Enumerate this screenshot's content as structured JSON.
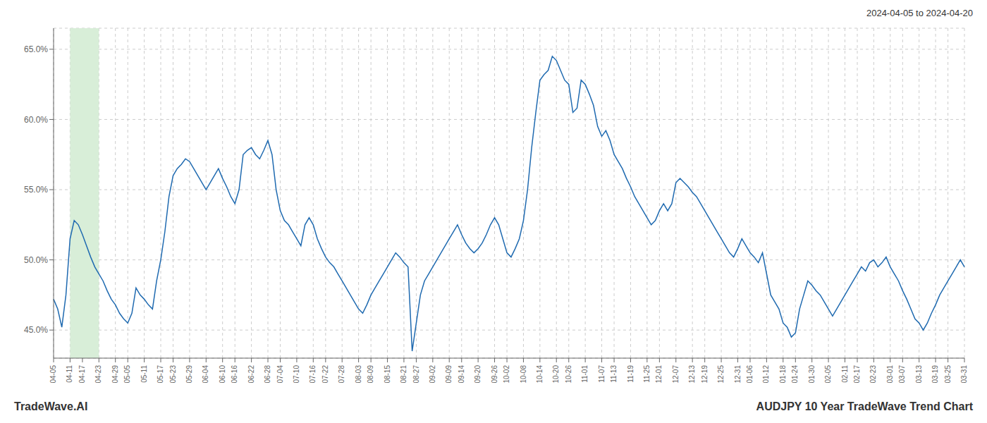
{
  "chart_data": {
    "type": "line",
    "title": "AUDJPY 10 Year TradeWave Trend Chart",
    "subtitle": "2024-04-05 to 2024-04-20",
    "annotations": [
      "TradeWave.AI"
    ],
    "color": "#1f6ab0",
    "grid": true,
    "ylim": [
      43.0,
      66.5
    ],
    "yticks": [
      {
        "value": 45.0,
        "label": "45.0%"
      },
      {
        "value": 50.0,
        "label": "50.0%"
      },
      {
        "value": 55.0,
        "label": "55.0%"
      },
      {
        "value": 60.0,
        "label": "60.0%"
      },
      {
        "value": 65.0,
        "label": "65.0%"
      }
    ],
    "highlight": {
      "from": "04-11",
      "to": "04-23",
      "color": "#d8eed8"
    },
    "categories": [
      "04-05",
      null,
      null,
      null,
      "04-11",
      null,
      null,
      "04-17",
      null,
      null,
      null,
      "04-23",
      null,
      null,
      null,
      "04-29",
      null,
      null,
      "05-05",
      null,
      null,
      null,
      "05-11",
      null,
      null,
      null,
      "05-17",
      null,
      null,
      "05-23",
      null,
      null,
      null,
      "05-29",
      null,
      null,
      null,
      "06-04",
      null,
      null,
      null,
      "06-10",
      null,
      null,
      "06-16",
      null,
      null,
      null,
      "06-22",
      null,
      null,
      null,
      "06-28",
      null,
      null,
      "07-04",
      null,
      null,
      null,
      "07-10",
      null,
      null,
      null,
      "07-16",
      null,
      null,
      "07-22",
      null,
      null,
      null,
      "07-28",
      null,
      null,
      null,
      "08-03",
      null,
      null,
      "08-09",
      null,
      null,
      null,
      "08-15",
      null,
      null,
      null,
      "08-21",
      null,
      null,
      "08-27",
      null,
      null,
      null,
      "09-02",
      null,
      null,
      null,
      "09-09",
      null,
      null,
      "09-14",
      null,
      null,
      null,
      "09-20",
      null,
      null,
      null,
      "09-26",
      null,
      null,
      "10-02",
      null,
      null,
      null,
      "10-08",
      null,
      null,
      null,
      "10-14",
      null,
      null,
      null,
      "10-20",
      null,
      null,
      "10-26",
      null,
      null,
      null,
      "11-01",
      null,
      null,
      null,
      "11-07",
      null,
      null,
      "11-13",
      null,
      null,
      null,
      "11-19",
      null,
      null,
      null,
      "11-25",
      null,
      null,
      "12-01",
      null,
      null,
      null,
      "12-07",
      null,
      null,
      null,
      "12-13",
      null,
      null,
      "12-19",
      null,
      null,
      null,
      "12-25",
      null,
      null,
      null,
      "12-31",
      null,
      null,
      "01-06",
      null,
      null,
      null,
      "01-12",
      null,
      null,
      null,
      "01-18",
      null,
      null,
      "01-24",
      null,
      null,
      null,
      "01-30",
      null,
      null,
      null,
      "02-05",
      null,
      null,
      null,
      "02-11",
      null,
      null,
      "02-17",
      null,
      null,
      null,
      "02-23",
      null,
      null,
      null,
      "03-01",
      null,
      null,
      "03-07",
      null,
      null,
      null,
      "03-13",
      null,
      null,
      null,
      "03-19",
      null,
      null,
      "03-25",
      null,
      null,
      null,
      "03-31"
    ],
    "values": [
      47.2,
      46.5,
      45.2,
      47.5,
      51.5,
      52.8,
      52.5,
      51.8,
      51.0,
      50.2,
      49.5,
      49.0,
      48.5,
      47.8,
      47.2,
      46.8,
      46.2,
      45.8,
      45.5,
      46.2,
      48.0,
      47.5,
      47.2,
      46.8,
      46.5,
      48.5,
      50.0,
      52.0,
      54.5,
      56.0,
      56.5,
      56.8,
      57.2,
      57.0,
      56.5,
      56.0,
      55.5,
      55.0,
      55.5,
      56.0,
      56.5,
      55.8,
      55.2,
      54.5,
      54.0,
      55.0,
      57.5,
      57.8,
      58.0,
      57.5,
      57.2,
      57.8,
      58.5,
      57.5,
      55.0,
      53.5,
      52.8,
      52.5,
      52.0,
      51.5,
      51.0,
      52.5,
      53.0,
      52.5,
      51.5,
      50.8,
      50.2,
      49.8,
      49.5,
      49.0,
      48.5,
      48.0,
      47.5,
      47.0,
      46.5,
      46.2,
      46.8,
      47.5,
      48.0,
      48.5,
      49.0,
      49.5,
      50.0,
      50.5,
      50.2,
      49.8,
      49.5,
      43.5,
      45.5,
      47.5,
      48.5,
      49.0,
      49.5,
      50.0,
      50.5,
      51.0,
      51.5,
      52.0,
      52.5,
      51.8,
      51.2,
      50.8,
      50.5,
      50.8,
      51.2,
      51.8,
      52.5,
      53.0,
      52.5,
      51.5,
      50.5,
      50.2,
      50.8,
      51.5,
      52.8,
      55.0,
      58.0,
      60.5,
      62.8,
      63.2,
      63.5,
      64.5,
      64.2,
      63.5,
      62.8,
      62.5,
      60.5,
      60.8,
      62.8,
      62.5,
      61.8,
      61.0,
      59.5,
      58.8,
      59.2,
      58.5,
      57.5,
      57.0,
      56.5,
      55.8,
      55.2,
      54.5,
      54.0,
      53.5,
      53.0,
      52.5,
      52.8,
      53.5,
      54.0,
      53.5,
      54.0,
      55.5,
      55.8,
      55.5,
      55.2,
      54.8,
      54.5,
      54.0,
      53.5,
      53.0,
      52.5,
      52.0,
      51.5,
      51.0,
      50.5,
      50.2,
      50.8,
      51.5,
      51.0,
      50.5,
      50.2,
      49.8,
      50.5,
      49.0,
      47.5,
      47.0,
      46.5,
      45.5,
      45.2,
      44.5,
      44.8,
      46.5,
      47.5,
      48.5,
      48.2,
      47.8,
      47.5,
      47.0,
      46.5,
      46.0,
      46.5,
      47.0,
      47.5,
      48.0,
      48.5,
      49.0,
      49.5,
      49.2,
      49.8,
      50.0,
      49.5,
      49.8,
      50.2,
      49.5,
      49.0,
      48.5,
      47.8,
      47.2,
      46.5,
      45.8,
      45.5,
      45.0,
      45.5,
      46.2,
      46.8,
      47.5,
      48.0,
      48.5,
      49.0,
      49.5,
      50.0,
      49.5
    ]
  }
}
